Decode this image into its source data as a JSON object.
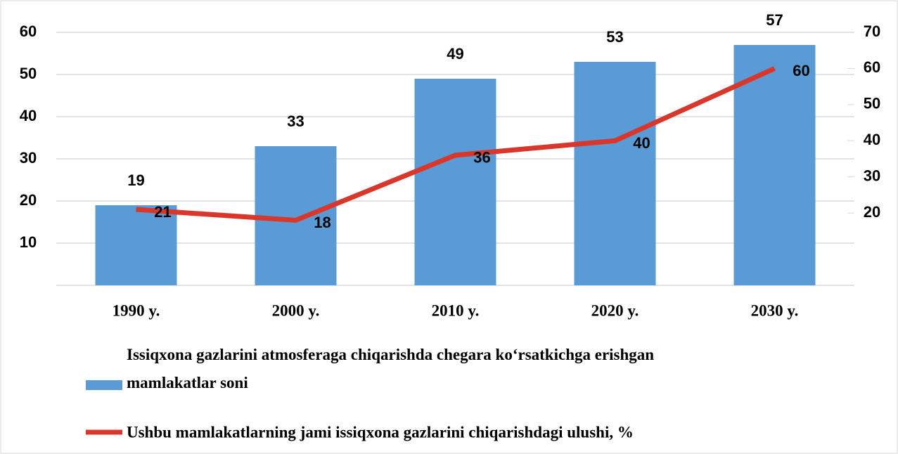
{
  "chart_data": {
    "type": "bar-line",
    "categories": [
      "1990 y.",
      "2000 y.",
      "2010 y.",
      "2020 y.",
      "2030 y."
    ],
    "series": [
      {
        "name": "Issiqxona gazlarini atmosferaga chiqarishda chegara ko‘rsatkichga erishgan mamlakatlar soni",
        "type": "bar",
        "color": "#5b9bd5",
        "values": [
          19,
          33,
          49,
          53,
          57
        ]
      },
      {
        "name": "Ushbu mamlakatlarning jami issiqxona gazlarini chiqarishdagi ulushi, %",
        "type": "line",
        "axis": "y2",
        "color": "#d9372b",
        "values": [
          21,
          18,
          36,
          40,
          60
        ]
      }
    ],
    "ylim": [
      0,
      60
    ],
    "yticks": [
      10,
      20,
      30,
      40,
      50,
      60
    ],
    "y2lim": [
      0,
      70
    ],
    "y2ticks": [
      20,
      30,
      40,
      50,
      60,
      70
    ],
    "grid": true,
    "legend": "bottom"
  }
}
